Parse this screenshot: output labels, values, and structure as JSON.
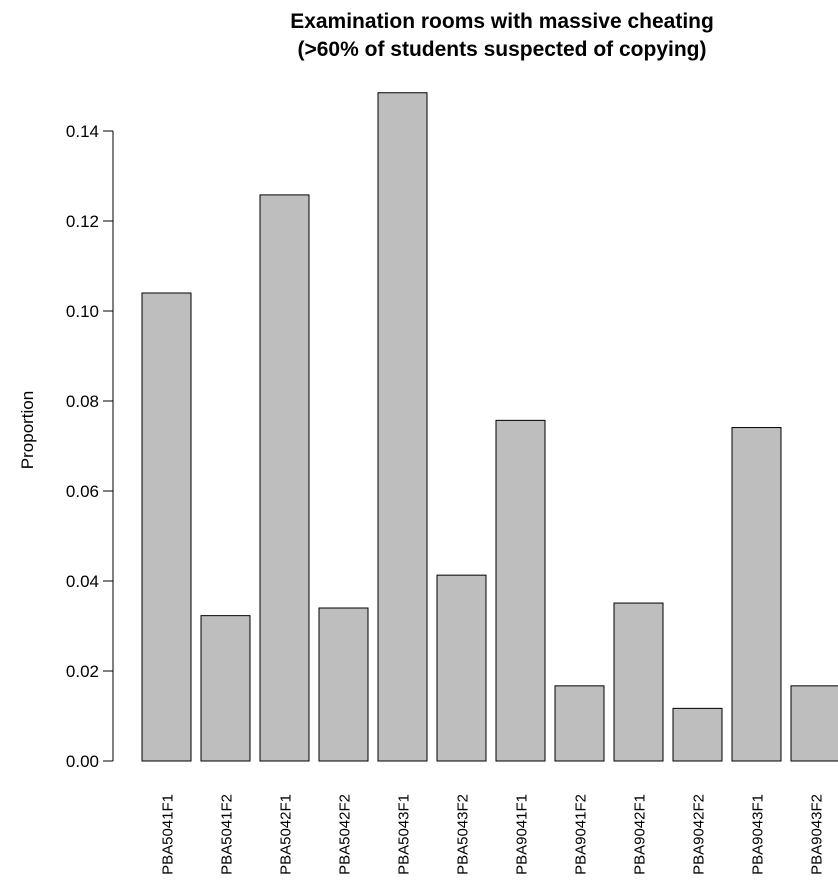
{
  "chart_data": {
    "type": "bar",
    "title": "Examination rooms with massive cheating",
    "subtitle": "(>60% of students suspected of copying)",
    "xlabel": "",
    "ylabel": "Proportion",
    "ylim": [
      0,
      0.14
    ],
    "yticks": [
      "0.00",
      "0.02",
      "0.04",
      "0.06",
      "0.08",
      "0.10",
      "0.12",
      "0.14"
    ],
    "grid": false,
    "legend": "none",
    "categories": [
      "PBA5041F1",
      "PBA5041F2",
      "PBA5042F1",
      "PBA5042F2",
      "PBA5043F1",
      "PBA5043F2",
      "PBA9041F1",
      "PBA9041F2",
      "PBA9042F1",
      "PBA9042F2",
      "PBA9043F1",
      "PBA9043F2"
    ],
    "values": [
      0.104,
      0.0323,
      0.1258,
      0.034,
      0.1485,
      0.0413,
      0.0757,
      0.0167,
      0.0351,
      0.0117,
      0.0741,
      0.0167
    ],
    "bar_color": "#bebebe",
    "border_color": "#000000"
  }
}
